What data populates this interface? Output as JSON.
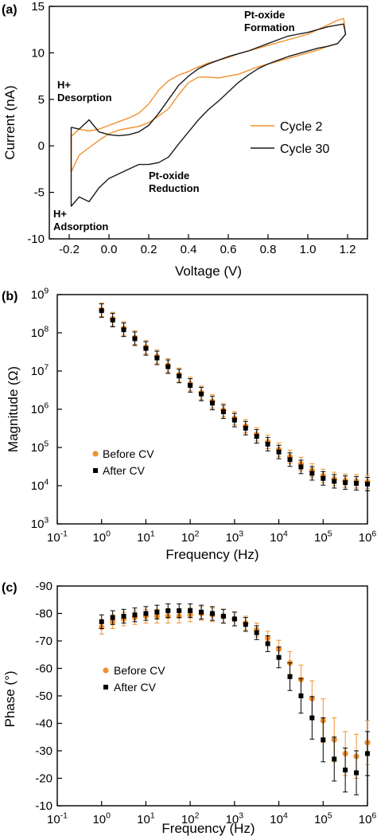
{
  "chart_data": [
    {
      "panel": "(a)",
      "type": "line",
      "xlabel": "Voltage (V)",
      "ylabel": "Current (nA)",
      "xlim": [
        -0.3,
        1.3
      ],
      "ylim": [
        -10,
        15
      ],
      "xticks": [
        -0.2,
        0.0,
        0.2,
        0.4,
        0.6,
        0.8,
        1.0,
        1.2
      ],
      "xtick_labels": [
        "-0.2",
        "0.0",
        "0.2",
        "0.4",
        "0.6",
        "0.8",
        "1.0",
        "1.2"
      ],
      "yticks": [
        -10,
        -5,
        0,
        5,
        10,
        15
      ],
      "ytick_labels": [
        "-10",
        "-5",
        "0",
        "5",
        "10",
        "15"
      ],
      "legend_position": "right",
      "annotations": [
        {
          "lines": [
            "Pt-oxide",
            "Formation"
          ],
          "x": 0.68,
          "y": 13.7
        },
        {
          "lines": [
            "H+",
            "Desorption"
          ],
          "x": -0.26,
          "y": 6.2
        },
        {
          "lines": [
            "Pt-oxide",
            "Reduction"
          ],
          "x": 0.2,
          "y": -3.6
        },
        {
          "lines": [
            "H+",
            "Adsorption"
          ],
          "x": -0.28,
          "y": -7.7
        }
      ],
      "series": [
        {
          "name": "Cycle 2",
          "color": "#f0912e",
          "x": [
            -0.19,
            -0.15,
            -0.1,
            -0.05,
            0.0,
            0.05,
            0.1,
            0.15,
            0.2,
            0.25,
            0.3,
            0.35,
            0.4,
            0.45,
            0.5,
            0.55,
            0.6,
            0.65,
            0.7,
            0.75,
            0.8,
            0.85,
            0.9,
            0.95,
            1.0,
            1.05,
            1.1,
            1.15,
            1.18,
            1.19,
            1.15,
            1.1,
            1.05,
            1.0,
            0.95,
            0.9,
            0.85,
            0.8,
            0.75,
            0.7,
            0.65,
            0.6,
            0.55,
            0.5,
            0.45,
            0.4,
            0.35,
            0.3,
            0.25,
            0.2,
            0.15,
            0.1,
            0.05,
            0.0,
            -0.05,
            -0.1,
            -0.15,
            -0.19,
            -0.19
          ],
          "y": [
            1.0,
            1.8,
            1.6,
            1.8,
            2.2,
            2.6,
            3.0,
            3.5,
            4.5,
            6.0,
            7.0,
            7.6,
            8.0,
            8.5,
            8.9,
            9.2,
            9.5,
            9.9,
            10.2,
            10.5,
            10.8,
            11.1,
            11.4,
            11.7,
            12.0,
            12.5,
            13.0,
            13.5,
            13.7,
            12.0,
            11.0,
            10.7,
            10.3,
            10.0,
            9.7,
            9.4,
            9.1,
            8.8,
            8.5,
            8.1,
            7.7,
            7.5,
            7.3,
            7.4,
            7.4,
            6.8,
            5.5,
            4.0,
            3.2,
            2.5,
            2.1,
            1.9,
            1.7,
            1.3,
            0.6,
            -0.2,
            -1.0,
            -2.8,
            1.0
          ]
        },
        {
          "name": "Cycle 30",
          "color": "#1a1a1a",
          "x": [
            -0.19,
            -0.15,
            -0.1,
            -0.05,
            0.0,
            0.05,
            0.1,
            0.15,
            0.2,
            0.25,
            0.3,
            0.35,
            0.4,
            0.45,
            0.5,
            0.55,
            0.6,
            0.65,
            0.7,
            0.75,
            0.8,
            0.85,
            0.9,
            0.95,
            1.0,
            1.05,
            1.1,
            1.15,
            1.18,
            1.19,
            1.15,
            1.1,
            1.05,
            1.0,
            0.95,
            0.9,
            0.85,
            0.8,
            0.75,
            0.7,
            0.65,
            0.6,
            0.55,
            0.5,
            0.45,
            0.4,
            0.35,
            0.3,
            0.25,
            0.2,
            0.15,
            0.1,
            0.05,
            0.0,
            -0.05,
            -0.1,
            -0.15,
            -0.19,
            -0.19
          ],
          "y": [
            2.0,
            1.8,
            2.8,
            1.5,
            1.2,
            1.1,
            1.2,
            1.5,
            2.2,
            3.5,
            5.0,
            6.5,
            7.5,
            8.3,
            8.8,
            9.2,
            9.6,
            9.9,
            10.2,
            10.6,
            11.0,
            11.4,
            11.8,
            12.0,
            12.2,
            12.5,
            12.8,
            13.0,
            13.1,
            12.0,
            11.0,
            10.7,
            10.5,
            10.2,
            9.9,
            9.6,
            9.2,
            8.8,
            8.3,
            7.6,
            6.8,
            5.8,
            4.8,
            3.9,
            2.8,
            1.5,
            0.2,
            -1.2,
            -1.8,
            -2.0,
            -2.0,
            -2.5,
            -3.0,
            -3.5,
            -4.5,
            -6.0,
            -5.5,
            -6.5,
            2.0
          ]
        }
      ]
    },
    {
      "panel": "(b)",
      "type": "scatter",
      "xlabel": "Frequency (Hz)",
      "ylabel": "Magnitude (Ω)",
      "xscale": "log",
      "yscale": "log",
      "xlim": [
        0.1,
        1000000
      ],
      "ylim": [
        1000,
        1000000000
      ],
      "xticks": [
        0.1,
        1,
        10,
        100,
        1000,
        10000,
        100000,
        1000000
      ],
      "xtick_labels": [
        [
          "10",
          "-1"
        ],
        [
          "10",
          "0"
        ],
        [
          "10",
          "1"
        ],
        [
          "10",
          "2"
        ],
        [
          "10",
          "3"
        ],
        [
          "10",
          "4"
        ],
        [
          "10",
          "5"
        ],
        [
          "10",
          "6"
        ]
      ],
      "yticks": [
        1000,
        10000,
        100000,
        1000000,
        10000000,
        100000000,
        1000000000
      ],
      "ytick_labels": [
        [
          "10",
          "3"
        ],
        [
          "10",
          "4"
        ],
        [
          "10",
          "5"
        ],
        [
          "10",
          "6"
        ],
        [
          "10",
          "7"
        ],
        [
          "10",
          "8"
        ],
        [
          "10",
          "9"
        ]
      ],
      "legend_position": "lower-left",
      "error_bars": true,
      "series": [
        {
          "name": "Before CV",
          "marker": "circle",
          "color": "#f0912e",
          "x": [
            1,
            1.78,
            3.16,
            5.62,
            10,
            17.8,
            31.6,
            56.2,
            100,
            178,
            316,
            562,
            1000,
            1780,
            3160,
            5620,
            10000,
            17800,
            31600,
            56200,
            100000,
            178000,
            316000,
            562000,
            1000000
          ],
          "y": [
            400000000,
            230000000,
            130000000,
            75000000,
            42000000,
            24000000,
            14000000,
            8000000,
            4600000,
            2700000,
            1600000,
            950000,
            580000,
            360000,
            220000,
            140000,
            88000,
            57000,
            37000,
            25000,
            18000,
            15000,
            13500,
            13000,
            12500
          ]
        },
        {
          "name": "After CV",
          "marker": "square",
          "color": "#000000",
          "x": [
            1,
            1.78,
            3.16,
            5.62,
            10,
            17.8,
            31.6,
            56.2,
            100,
            178,
            316,
            562,
            1000,
            1780,
            3160,
            5620,
            10000,
            17800,
            31600,
            56200,
            100000,
            178000,
            316000,
            562000,
            1000000
          ],
          "y": [
            380000000,
            215000000,
            120000000,
            70000000,
            39000000,
            22000000,
            13000000,
            7400000,
            4200000,
            2500000,
            1450000,
            860000,
            520000,
            320000,
            195000,
            122000,
            76000,
            48000,
            31000,
            21000,
            15500,
            13000,
            12000,
            11500,
            11000
          ]
        }
      ]
    },
    {
      "panel": "(c)",
      "type": "scatter",
      "xlabel": "Frequency (Hz)",
      "ylabel": "Phase (°)",
      "xscale": "log",
      "xlim": [
        0.1,
        1000000
      ],
      "ylim": [
        -90,
        -10
      ],
      "y_axis_inverted": true,
      "xticks": [
        0.1,
        1,
        10,
        100,
        1000,
        10000,
        100000,
        1000000
      ],
      "xtick_labels": [
        [
          "10",
          "-1"
        ],
        [
          "10",
          "0"
        ],
        [
          "10",
          "1"
        ],
        [
          "10",
          "2"
        ],
        [
          "10",
          "3"
        ],
        [
          "10",
          "4"
        ],
        [
          "10",
          "5"
        ],
        [
          "10",
          "6"
        ]
      ],
      "yticks": [
        -90,
        -80,
        -70,
        -60,
        -50,
        -40,
        -30,
        -20,
        -10
      ],
      "ytick_labels": [
        "-90",
        "-80",
        "-70",
        "-60",
        "-50",
        "-40",
        "-30",
        "-20",
        "-10"
      ],
      "legend_position": "left",
      "error_bars": true,
      "series": [
        {
          "name": "Before CV",
          "marker": "circle",
          "color": "#f0912e",
          "x": [
            1,
            1.78,
            3.16,
            5.62,
            10,
            17.8,
            31.6,
            56.2,
            100,
            178,
            316,
            562,
            1000,
            1780,
            3160,
            5620,
            10000,
            17800,
            31600,
            56200,
            100000,
            178000,
            316000,
            562000,
            1000000
          ],
          "y": [
            -75,
            -77,
            -78,
            -78.5,
            -79,
            -79,
            -79,
            -79,
            -79.5,
            -80,
            -79.5,
            -79,
            -78,
            -76.5,
            -74,
            -71,
            -67,
            -62,
            -56,
            -49,
            -41,
            -34,
            -29,
            -28,
            -33
          ]
        },
        {
          "name": "After CV",
          "marker": "square",
          "color": "#000000",
          "x": [
            1,
            1.78,
            3.16,
            5.62,
            10,
            17.8,
            31.6,
            56.2,
            100,
            178,
            316,
            562,
            1000,
            1780,
            3160,
            5620,
            10000,
            17800,
            31600,
            56200,
            100000,
            178000,
            316000,
            562000,
            1000000
          ],
          "y": [
            -77,
            -78.5,
            -79,
            -79.5,
            -80,
            -80.5,
            -81,
            -81,
            -81,
            -80.5,
            -80,
            -79,
            -78,
            -76,
            -73,
            -69,
            -64,
            -57,
            -50,
            -42,
            -34,
            -27,
            -23,
            -22,
            -29
          ]
        }
      ]
    }
  ]
}
